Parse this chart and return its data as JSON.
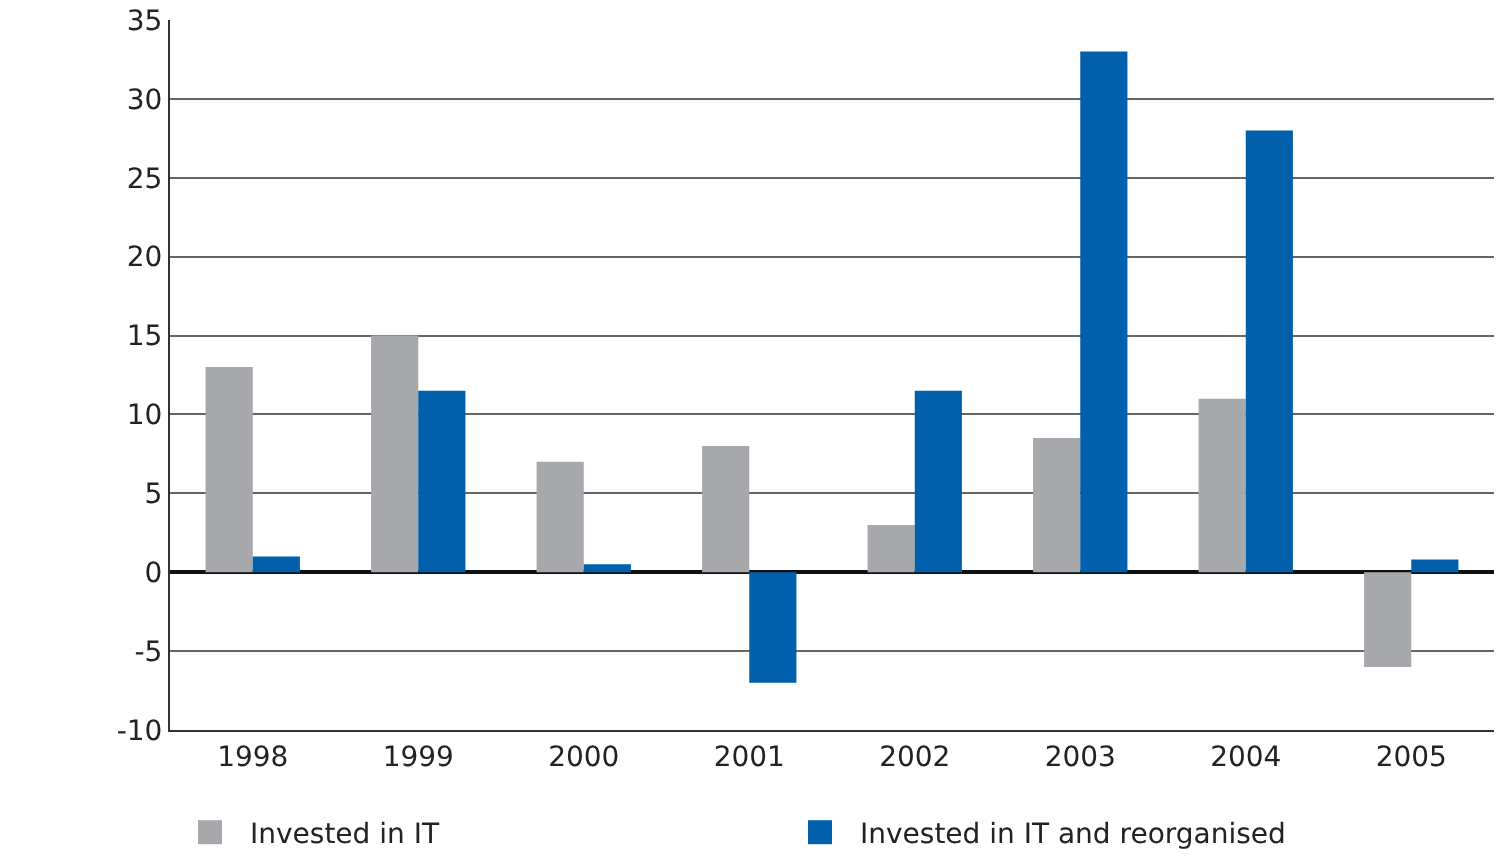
{
  "chart_data": {
    "type": "bar",
    "categories": [
      "1998",
      "1999",
      "2000",
      "2001",
      "2002",
      "2003",
      "2004",
      "2005"
    ],
    "series": [
      {
        "name": "Invested in IT",
        "color": "#a7a8ab",
        "values": [
          13,
          15,
          7,
          8,
          3,
          8.5,
          11,
          -6
        ]
      },
      {
        "name": "Invested in IT and reorganised",
        "color": "#0060ac",
        "values": [
          1,
          11.5,
          0.5,
          -7,
          11.5,
          33,
          28,
          0.8
        ]
      }
    ],
    "ylim": [
      -10,
      35
    ],
    "yticks": [
      -10,
      -5,
      0,
      5,
      10,
      15,
      20,
      25,
      30,
      35
    ],
    "grid": "y",
    "legend": "bottom left"
  }
}
